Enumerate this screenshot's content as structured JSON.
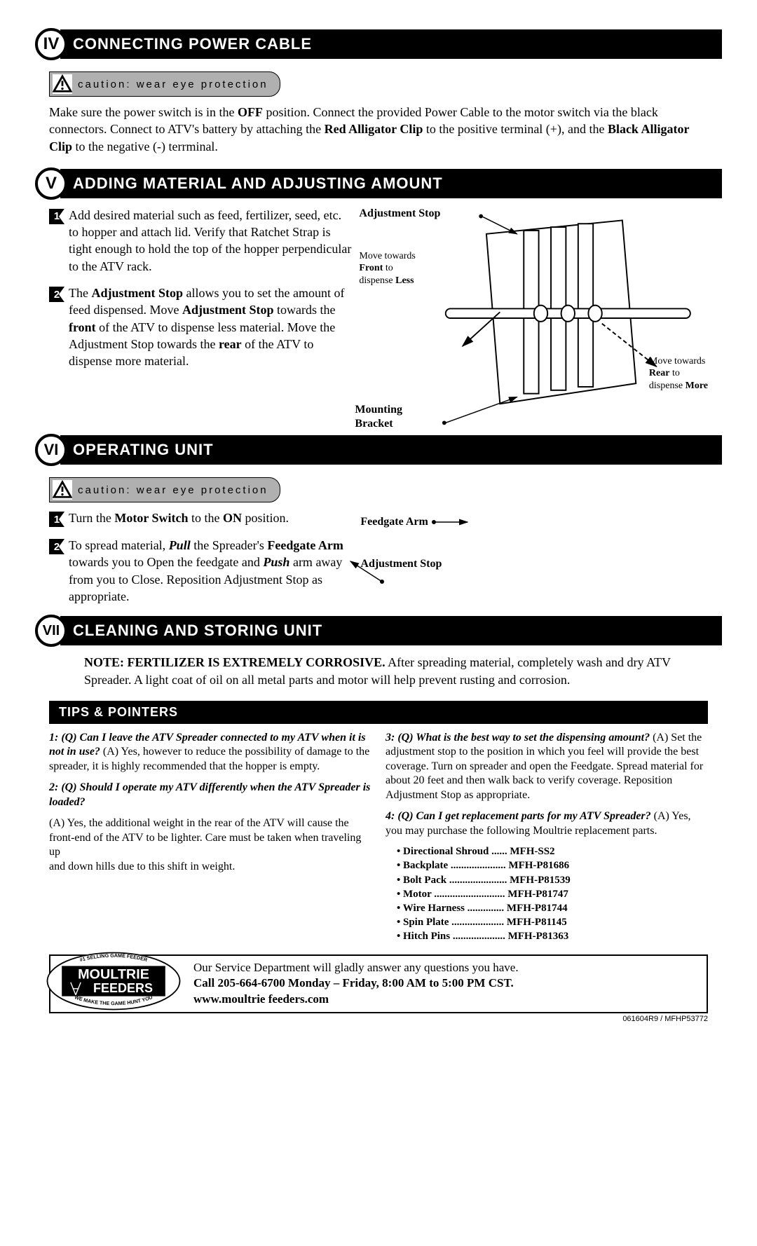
{
  "sections": {
    "iv": {
      "roman": "IV",
      "title": "CONNECTING POWER CABLE"
    },
    "v": {
      "roman": "V",
      "title": "ADDING MATERIAL AND ADJUSTING AMOUNT"
    },
    "vi": {
      "roman": "VI",
      "title": "OPERATING UNIT"
    },
    "vii": {
      "roman": "VII",
      "title": "CLEANING AND STORING UNIT"
    }
  },
  "caution_text": "caution: wear eye protection",
  "iv_body_pre": "Make sure the power switch is in the ",
  "iv_off": "OFF",
  "iv_body_mid": " position. Connect the provided Power Cable to the motor switch via the black connectors. Connect to ATV's battery by attaching the ",
  "iv_red": "Red Alligator Clip",
  "iv_body_mid2": " to the positive terminal (+), and the ",
  "iv_black": "Black Alligator Clip",
  "iv_body_end": " to the negative (-) terrminal.",
  "v_item1": "Add desired material such as feed, fertilizer, seed, etc. to hopper and attach lid. Verify that Ratchet Strap is tight enough to hold the top of the hopper perpendicular to the ATV rack.",
  "v_item2_pre": "The ",
  "v_item2_b1": "Adjustment Stop",
  "v_item2_mid1": " allows you to set the amount of feed dispensed. Move ",
  "v_item2_b2": "Adjustment Stop",
  "v_item2_mid2": " towards the ",
  "v_item2_b3": "front",
  "v_item2_mid3": " of the ATV to dispense less material. Move the Adjustment Stop towards the ",
  "v_item2_b4": "rear",
  "v_item2_end": " of the ATV to dispense more material.",
  "diag": {
    "adj_stop": "Adjustment Stop",
    "mounting": "Mounting",
    "bracket": "Bracket",
    "move_towards": "Move towards",
    "front": "Front",
    "to": " to",
    "dispense": "dispense ",
    "less": "Less",
    "rear": "Rear",
    "more": "More"
  },
  "vi_item1_pre": "Turn the ",
  "vi_item1_b1": "Motor Switch",
  "vi_item1_mid": " to the ",
  "vi_item1_b2": "ON",
  "vi_item1_end": " position.",
  "vi_item2_pre": "To spread material, ",
  "vi_item2_i1": "Pull",
  "vi_item2_mid1": " the Spreader's ",
  "vi_item2_b1": "Feedgate Arm",
  "vi_item2_mid2": " towards you to Open the feedgate and ",
  "vi_item2_i2": "Push",
  "vi_item2_end": " arm away from you to Close. Reposition Adjustment Stop as appropriate.",
  "vi_diag": {
    "feedgate": "Feedgate Arm",
    "adj_stop": "Adjustment Stop"
  },
  "vii_note_b": "NOTE: FERTILIZER IS EXTREMELY CORROSIVE.",
  "vii_note": " After spreading material, completely wash and dry ATV Spreader. A light coat of oil on all metal parts and motor will help prevent rusting and corrosion.",
  "tips_title": "TIPS & POINTERS",
  "q1_q": "1: (Q) Can I leave the ATV Spreader connected to my ATV when it is not in use?",
  "q1_a": " (A) Yes, however to reduce the possibility of damage to the spreader, it is highly recommended that the hopper is empty.",
  "q2_q": "2: (Q) Should I operate my ATV differently when the ATV Spreader is loaded?",
  "q2_a": "(A) Yes, the additional weight in the rear of the ATV will cause the front-end of the ATV to be lighter. Care must be taken when traveling up",
  "q2_a2": "and down hills due to this shift in weight.",
  "q3_q": "3: (Q) What is the best way to set the dispensing amount?",
  "q3_a": " (A) Set the adjustment stop to the position in which you feel will provide the best coverage. Turn on spreader and open the Feedgate. Spread material for about 20 feet and then walk back to verify coverage. Reposition Adjustment Stop as appropriate.",
  "q4_q": "4: (Q) Can I get replacement parts for my ATV Spreader?",
  "q4_a": " (A) Yes, you may purchase the following Moultrie replacement parts.",
  "parts": [
    {
      "name": "Directional Shroud",
      "dots": " ...... ",
      "num": "MFH-SS2"
    },
    {
      "name": "Backplate",
      "dots": " ..................... ",
      "num": "MFH-P81686"
    },
    {
      "name": "Bolt Pack",
      "dots": " ...................... ",
      "num": "MFH-P81539"
    },
    {
      "name": "Motor",
      "dots": " ........................... ",
      "num": "MFH-P81747"
    },
    {
      "name": "Wire Harness",
      "dots": " .............. ",
      "num": "MFH-P81744"
    },
    {
      "name": "Spin Plate",
      "dots": " .................... ",
      "num": "MFH-P81145"
    },
    {
      "name": "Hitch Pins",
      "dots": " .................... ",
      "num": "MFH-P81363"
    }
  ],
  "logo": {
    "top": "#1 SELLING GAME FEEDER",
    "main1": "MOULTRIE",
    "main2": "FEEDERS",
    "bottom": "\"WE MAKE THE GAME HUNT YOU\""
  },
  "footer": {
    "line1": "Our Service Department will gladly answer any questions you have.",
    "line2": "Call 205-664-6700 Monday – Friday, 8:00 AM to 5:00 PM CST.",
    "line3": "www.moultrie feeders.com"
  },
  "doc_id": "061604R9 / MFHP53772",
  "colors": {
    "caution_bg": "#b0b0b0"
  }
}
